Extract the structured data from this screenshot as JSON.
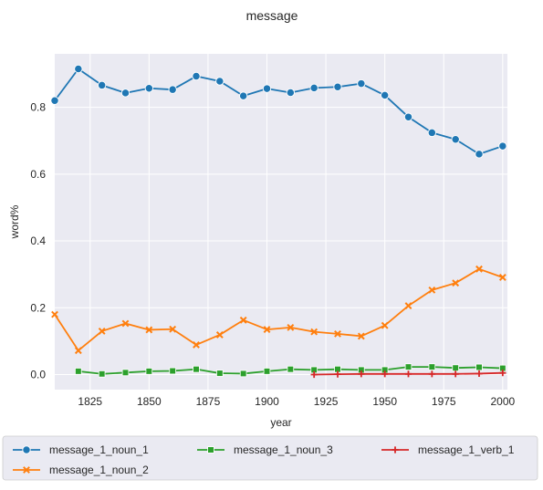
{
  "chart_data": {
    "type": "line",
    "title": "message",
    "xlabel": "year",
    "ylabel": "word%",
    "xlim": [
      1810,
      2002
    ],
    "ylim": [
      -0.045,
      0.96
    ],
    "xticks": [
      1825,
      1850,
      1875,
      1900,
      1925,
      1950,
      1975,
      2000
    ],
    "yticks": [
      0.0,
      0.2,
      0.4,
      0.6,
      0.8
    ],
    "ytick_labels": [
      "0.0",
      "0.2",
      "0.4",
      "0.6",
      "0.8"
    ],
    "grid": true,
    "legend_placement": "bottom",
    "series": [
      {
        "name": "message_1_noun_1",
        "color": "#1f77b4",
        "marker": "circle",
        "x": [
          1810,
          1820,
          1830,
          1840,
          1850,
          1860,
          1870,
          1880,
          1890,
          1900,
          1910,
          1920,
          1930,
          1940,
          1950,
          1960,
          1970,
          1980,
          1990,
          2000
        ],
        "y": [
          0.82,
          0.915,
          0.866,
          0.843,
          0.857,
          0.853,
          0.893,
          0.878,
          0.834,
          0.856,
          0.844,
          0.858,
          0.861,
          0.871,
          0.836,
          0.771,
          0.724,
          0.704,
          0.66,
          0.684
        ]
      },
      {
        "name": "message_1_noun_2",
        "color": "#ff7f0e",
        "marker": "x",
        "x": [
          1810,
          1820,
          1830,
          1840,
          1850,
          1860,
          1870,
          1880,
          1890,
          1900,
          1910,
          1920,
          1930,
          1940,
          1950,
          1960,
          1970,
          1980,
          1990,
          2000
        ],
        "y": [
          0.18,
          0.072,
          0.13,
          0.153,
          0.134,
          0.136,
          0.089,
          0.119,
          0.163,
          0.135,
          0.141,
          0.128,
          0.122,
          0.115,
          0.147,
          0.206,
          0.253,
          0.274,
          0.316,
          0.291
        ]
      },
      {
        "name": "message_1_noun_3",
        "color": "#2ca02c",
        "marker": "square",
        "x": [
          1820,
          1830,
          1840,
          1850,
          1860,
          1870,
          1880,
          1890,
          1900,
          1910,
          1920,
          1930,
          1940,
          1950,
          1960,
          1970,
          1980,
          1990,
          2000
        ],
        "y": [
          0.01,
          0.002,
          0.006,
          0.01,
          0.011,
          0.016,
          0.004,
          0.003,
          0.01,
          0.016,
          0.014,
          0.016,
          0.014,
          0.014,
          0.023,
          0.023,
          0.02,
          0.022,
          0.019
        ]
      },
      {
        "name": "message_1_verb_1",
        "color": "#d62728",
        "marker": "plus",
        "x": [
          1920,
          1930,
          1940,
          1950,
          1960,
          1970,
          1980,
          1990,
          2000
        ],
        "y": [
          0.0,
          0.001,
          0.002,
          0.002,
          0.002,
          0.002,
          0.002,
          0.003,
          0.005
        ]
      }
    ]
  }
}
